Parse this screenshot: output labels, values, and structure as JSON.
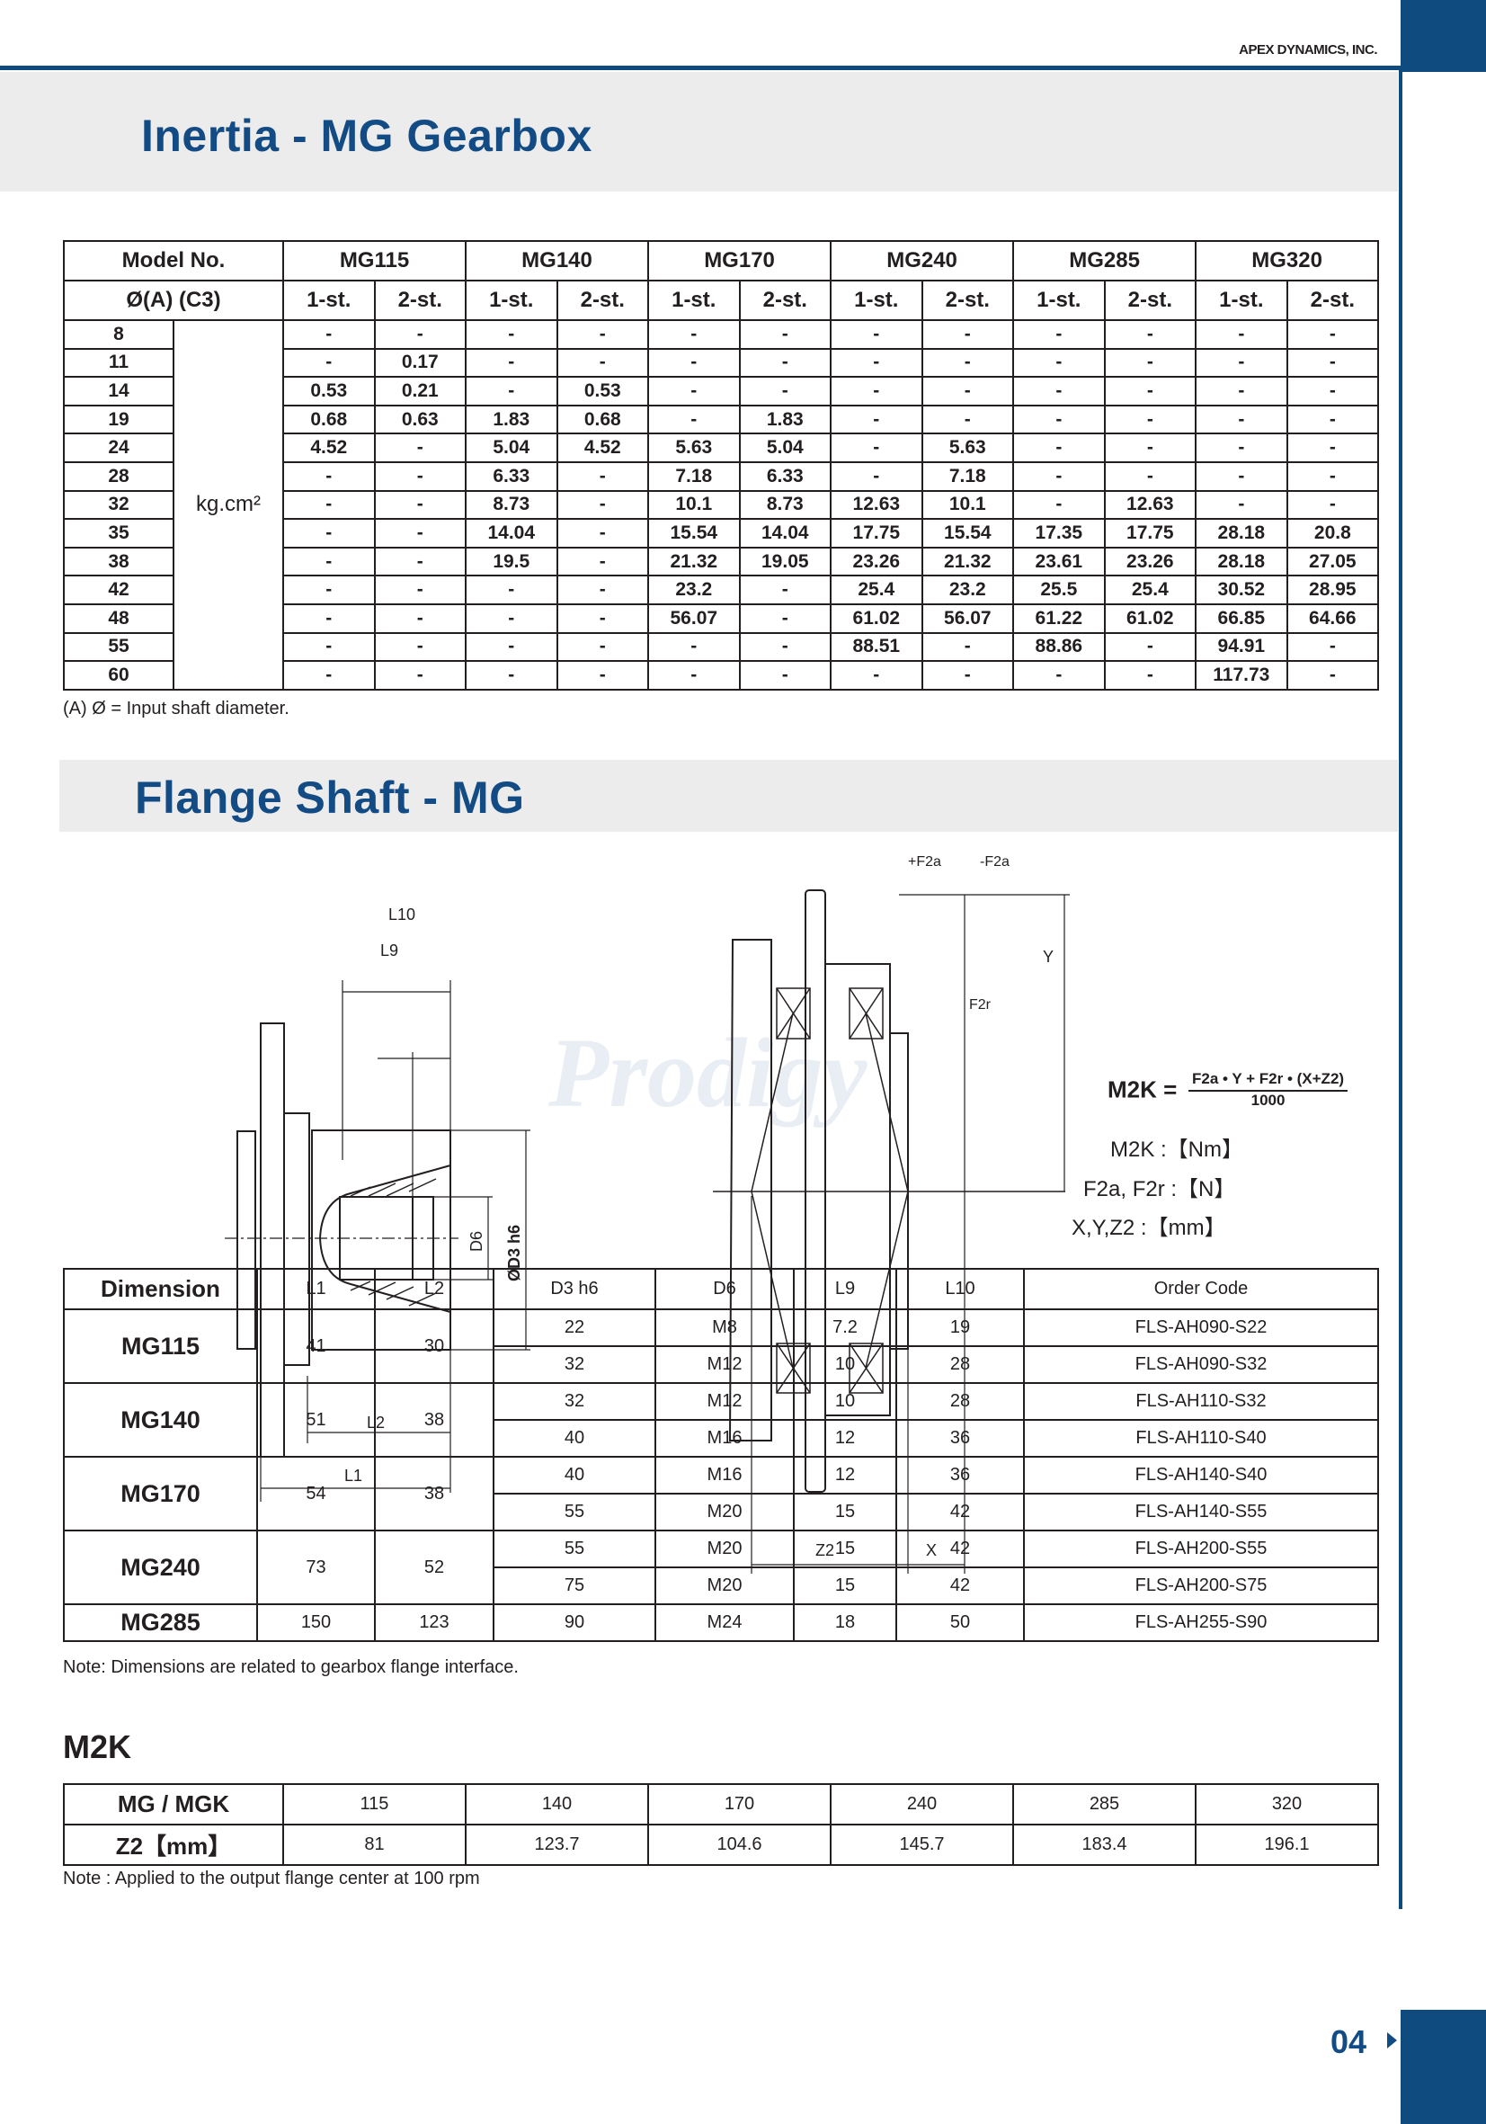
{
  "header": {
    "company": "APEX DYNAMICS, INC.",
    "brand_color": "#0f4b7f"
  },
  "inertia": {
    "title": "Inertia - MG Gearbox",
    "model_label": "Model No.",
    "diameter_label": "Ø(A) (C3)",
    "unit": "kg.cm²",
    "models": [
      "MG115",
      "MG140",
      "MG170",
      "MG240",
      "MG285",
      "MG320"
    ],
    "stages": [
      "1-st.",
      "2-st."
    ],
    "rows": [
      {
        "d": "8",
        "v": [
          "-",
          "-",
          "-",
          "-",
          "-",
          "-",
          "-",
          "-",
          "-",
          "-",
          "-",
          "-"
        ]
      },
      {
        "d": "11",
        "v": [
          "-",
          "0.17",
          "-",
          "-",
          "-",
          "-",
          "-",
          "-",
          "-",
          "-",
          "-",
          "-"
        ]
      },
      {
        "d": "14",
        "v": [
          "0.53",
          "0.21",
          "-",
          "0.53",
          "-",
          "-",
          "-",
          "-",
          "-",
          "-",
          "-",
          "-"
        ]
      },
      {
        "d": "19",
        "v": [
          "0.68",
          "0.63",
          "1.83",
          "0.68",
          "-",
          "1.83",
          "-",
          "-",
          "-",
          "-",
          "-",
          "-"
        ]
      },
      {
        "d": "24",
        "v": [
          "4.52",
          "-",
          "5.04",
          "4.52",
          "5.63",
          "5.04",
          "-",
          "5.63",
          "-",
          "-",
          "-",
          "-"
        ]
      },
      {
        "d": "28",
        "v": [
          "-",
          "-",
          "6.33",
          "-",
          "7.18",
          "6.33",
          "-",
          "7.18",
          "-",
          "-",
          "-",
          "-"
        ]
      },
      {
        "d": "32",
        "v": [
          "-",
          "-",
          "8.73",
          "-",
          "10.1",
          "8.73",
          "12.63",
          "10.1",
          "-",
          "12.63",
          "-",
          "-"
        ]
      },
      {
        "d": "35",
        "v": [
          "-",
          "-",
          "14.04",
          "-",
          "15.54",
          "14.04",
          "17.75",
          "15.54",
          "17.35",
          "17.75",
          "28.18",
          "20.8"
        ]
      },
      {
        "d": "38",
        "v": [
          "-",
          "-",
          "19.5",
          "-",
          "21.32",
          "19.05",
          "23.26",
          "21.32",
          "23.61",
          "23.26",
          "28.18",
          "27.05"
        ]
      },
      {
        "d": "42",
        "v": [
          "-",
          "-",
          "-",
          "-",
          "23.2",
          "-",
          "25.4",
          "23.2",
          "25.5",
          "25.4",
          "30.52",
          "28.95"
        ]
      },
      {
        "d": "48",
        "v": [
          "-",
          "-",
          "-",
          "-",
          "56.07",
          "-",
          "61.02",
          "56.07",
          "61.22",
          "61.02",
          "66.85",
          "64.66"
        ]
      },
      {
        "d": "55",
        "v": [
          "-",
          "-",
          "-",
          "-",
          "-",
          "-",
          "88.51",
          "-",
          "88.86",
          "-",
          "94.91",
          "-"
        ]
      },
      {
        "d": "60",
        "v": [
          "-",
          "-",
          "-",
          "-",
          "-",
          "-",
          "-",
          "-",
          "-",
          "-",
          "117.73",
          "-"
        ]
      }
    ],
    "footnote": "(A)  Ø = Input shaft diameter."
  },
  "flange": {
    "title": "Flange Shaft - MG",
    "watermark": "Prodigy",
    "diagram_labels": {
      "l10": "L10",
      "l9": "L9",
      "l2": "L2",
      "l1": "L1",
      "d6": "D6",
      "d3": "ØD3 h6",
      "pf2a": "+F2a",
      "mf2a": "-F2a",
      "y": "Y",
      "f2r": "F2r",
      "z2": "Z2",
      "x": "X"
    },
    "formula": {
      "lhs": "M2K =",
      "numerator": "F2a • Y + F2r • (X+Z2)",
      "denominator": "1000",
      "units": [
        "M2K :【Nm】",
        "F2a, F2r :【N】",
        "X,Y,Z2 :【mm】"
      ]
    },
    "table": {
      "headers": [
        "Dimension",
        "L1",
        "L2",
        "D3    h6",
        "D6",
        "L9",
        "L10",
        "Order Code"
      ],
      "groups": [
        {
          "model": "MG115",
          "l1": "41",
          "l2": "30",
          "rows": [
            [
              "22",
              "M8",
              "7.2",
              "19",
              "FLS-AH090-S22"
            ],
            [
              "32",
              "M12",
              "10",
              "28",
              "FLS-AH090-S32"
            ]
          ]
        },
        {
          "model": "MG140",
          "l1": "51",
          "l2": "38",
          "rows": [
            [
              "32",
              "M12",
              "10",
              "28",
              "FLS-AH110-S32"
            ],
            [
              "40",
              "M16",
              "12",
              "36",
              "FLS-AH110-S40"
            ]
          ]
        },
        {
          "model": "MG170",
          "l1": "54",
          "l2": "38",
          "rows": [
            [
              "40",
              "M16",
              "12",
              "36",
              "FLS-AH140-S40"
            ],
            [
              "55",
              "M20",
              "15",
              "42",
              "FLS-AH140-S55"
            ]
          ]
        },
        {
          "model": "MG240",
          "l1": "73",
          "l2": "52",
          "rows": [
            [
              "55",
              "M20",
              "15",
              "42",
              "FLS-AH200-S55"
            ],
            [
              "75",
              "M20",
              "15",
              "42",
              "FLS-AH200-S75"
            ]
          ]
        },
        {
          "model": "MG285",
          "l1": "150",
          "l2": "123",
          "rows": [
            [
              "90",
              "M24",
              "18",
              "50",
              "FLS-AH255-S90"
            ]
          ]
        }
      ]
    },
    "note": "Note: Dimensions are related to gearbox flange interface."
  },
  "m2k": {
    "title": "M2K",
    "row1_label": "MG / MGK",
    "sizes": [
      "115",
      "140",
      "170",
      "240",
      "285",
      "320"
    ],
    "row2_label": "Z2【mm】",
    "z2": [
      "81",
      "123.7",
      "104.6",
      "145.7",
      "183.4",
      "196.1"
    ],
    "note": "Note : Applied to the output flange center at 100 rpm"
  },
  "footer": {
    "page_number": "04"
  }
}
